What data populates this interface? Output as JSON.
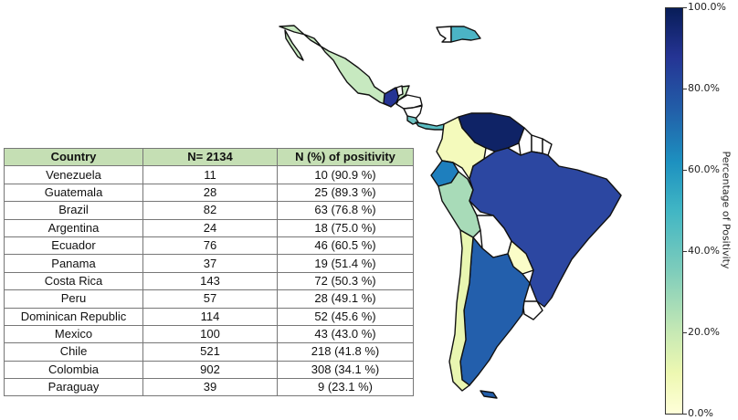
{
  "table": {
    "headers": {
      "country": "Country",
      "n": "N= 2134",
      "positivity": "N (%) of positivity"
    },
    "rows": [
      {
        "country": "Venezuela",
        "n": "11",
        "positivity": "10 (90.9 %)"
      },
      {
        "country": "Guatemala",
        "n": "28",
        "positivity": "25 (89.3 %)"
      },
      {
        "country": "Brazil",
        "n": "82",
        "positivity": "63 (76.8 %)"
      },
      {
        "country": "Argentina",
        "n": "24",
        "positivity": "18 (75.0 %)"
      },
      {
        "country": "Ecuador",
        "n": "76",
        "positivity": "46 (60.5 %)"
      },
      {
        "country": "Panama",
        "n": "37",
        "positivity": "19 (51.4 %)"
      },
      {
        "country": "Costa Rica",
        "n": "143",
        "positivity": "72 (50.3 %)"
      },
      {
        "country": "Peru",
        "n": "57",
        "positivity": "28 (49.1 %)"
      },
      {
        "country": "Dominican Republic",
        "n": "114",
        "positivity": "52 (45.6 %)"
      },
      {
        "country": "Mexico",
        "n": "100",
        "positivity": "43 (43.0 %)"
      },
      {
        "country": "Chile",
        "n": "521",
        "positivity": "218 (41.8 %)"
      },
      {
        "country": "Colombia",
        "n": "902",
        "positivity": "308 (34.1 %)"
      },
      {
        "country": "Paraguay",
        "n": "39",
        "positivity": "9 (23.1 %)"
      }
    ]
  },
  "colorbar": {
    "label": "Percentage of Positivity",
    "ticks": [
      "0.0%",
      "20.0%",
      "40.0%",
      "60.0%",
      "80.0%",
      "100.0%"
    ]
  },
  "map": {
    "colors": {
      "mexico": "#c7e9c0",
      "guatemala": "#253494",
      "belize": "#ffffff",
      "honduras": "#ffffff",
      "nicaragua": "#ffffff",
      "el_salvador": "#ffffff",
      "costa_rica": "#6fc3c2",
      "panama": "#5abdc3",
      "hispaniola_haiti": "#ffffff",
      "dominican_republic": "#4bb4c5",
      "colombia": "#f4fabc",
      "venezuela": "#0f2366",
      "guyana": "#ffffff",
      "suriname": "#ffffff",
      "french_guiana": "#ffffff",
      "ecuador": "#1e7fbe",
      "peru": "#a8dbb8",
      "brazil": "#2c47a1",
      "bolivia": "#ffffff",
      "paraguay": "#fbfdc8",
      "uruguay": "#ffffff",
      "argentina": "#235fac",
      "chile": "#e9f6b1"
    }
  }
}
